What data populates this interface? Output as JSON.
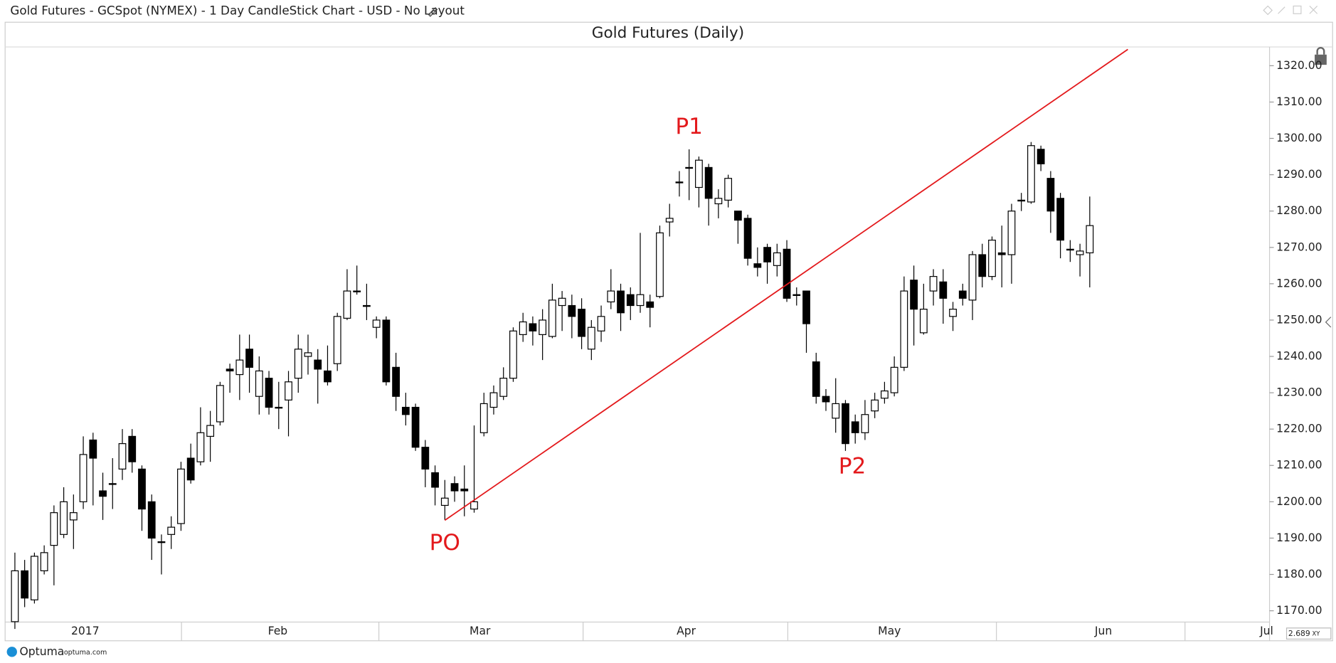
{
  "header": {
    "title": "Gold Futures - GCSpot (NYMEX) - 1 Day CandleStick Chart - USD - No Layout"
  },
  "footer": {
    "brand": "Optuma",
    "site": "optuma.com",
    "zoom": "2.689",
    "mode": "XY"
  },
  "chart_data": {
    "type": "candlestick",
    "title": "Gold Futures (Daily)",
    "up_color": "#ffffff",
    "down_color": "#000000",
    "open": [
      1167,
      1181,
      1173,
      1181,
      1188,
      1191,
      1195,
      1200,
      1217,
      1203,
      1205,
      1209,
      1218,
      1209,
      1200,
      1189,
      1191,
      1194,
      1212,
      1211,
      1218,
      1222,
      1236.5,
      1235,
      1242,
      1229,
      1234,
      1226,
      1228,
      1234,
      1240,
      1239,
      1236,
      1238,
      1250.5,
      1258,
      1254,
      1248,
      1250,
      1237,
      1226,
      1226,
      1215,
      1208,
      1199,
      1205,
      1203.5,
      1198,
      1219,
      1226,
      1229,
      1234,
      1246,
      1249,
      1246,
      1245.5,
      1254,
      1254,
      1253,
      1242,
      1247,
      1255,
      1258,
      1257,
      1254,
      1255,
      1256.5,
      1277,
      1288,
      1292,
      1286.5,
      1292,
      1282,
      1283,
      1280,
      1278,
      1265.5,
      1270,
      1265,
      1269.5,
      1257,
      1258,
      1238.5,
      1229,
      1223,
      1227,
      1222,
      1219,
      1225,
      1228.5,
      1230,
      1237,
      1261,
      1246.5,
      1258,
      1260.5,
      1251,
      1258,
      1255.5,
      1268,
      1262,
      1268.5,
      1268,
      1283,
      1282.5,
      1297,
      1289,
      1283.5,
      1269.5,
      1268,
      1268.5
    ],
    "high": [
      1186,
      1184,
      1186,
      1188,
      1199,
      1204,
      1202,
      1218,
      1219,
      1208,
      1212,
      1220,
      1220,
      1210,
      1202,
      1191,
      1196,
      1211,
      1216,
      1226,
      1225,
      1233,
      1238,
      1246,
      1246,
      1240,
      1236,
      1233,
      1236,
      1246,
      1246,
      1242,
      1243,
      1252,
      1264,
      1265,
      1260,
      1251,
      1251,
      1241,
      1230,
      1227,
      1217,
      1210,
      1206,
      1207,
      1210,
      1221,
      1230,
      1232,
      1237,
      1248,
      1252,
      1251,
      1253,
      1260,
      1258,
      1257,
      1256,
      1250,
      1254,
      1264,
      1260,
      1259,
      1274,
      1257,
      1276,
      1282,
      1291,
      1297,
      1295,
      1293,
      1286,
      1290,
      1280,
      1279,
      1270,
      1271,
      1271,
      1272,
      1259,
      1258,
      1241,
      1231,
      1234,
      1228,
      1224,
      1228,
      1230,
      1233,
      1240,
      1262,
      1265,
      1260,
      1264,
      1264,
      1255,
      1260,
      1269,
      1271,
      1273,
      1276,
      1282,
      1285,
      1299,
      1298,
      1291,
      1285,
      1272,
      1271,
      1284
    ],
    "low": [
      1165,
      1171,
      1172,
      1180,
      1177,
      1190,
      1187,
      1198,
      1199,
      1195,
      1198,
      1206,
      1208,
      1192,
      1184,
      1180,
      1187,
      1192,
      1205,
      1210,
      1211,
      1221,
      1230,
      1228,
      1230,
      1224,
      1224,
      1220,
      1218,
      1230,
      1235,
      1227,
      1232,
      1236,
      1250,
      1257,
      1250,
      1245,
      1232,
      1225,
      1221,
      1214,
      1204,
      1199,
      1195,
      1200,
      1196,
      1197,
      1218,
      1224,
      1228,
      1233,
      1244,
      1243,
      1239,
      1245,
      1247,
      1245,
      1242,
      1239,
      1244,
      1253,
      1247,
      1250,
      1252,
      1248,
      1256,
      1273,
      1284,
      1283,
      1281,
      1276,
      1278,
      1281,
      1271,
      1265,
      1262,
      1260,
      1262,
      1255,
      1254,
      1241,
      1227,
      1225,
      1219,
      1214,
      1216,
      1217,
      1223,
      1227,
      1229,
      1236,
      1243,
      1246,
      1254,
      1249,
      1247,
      1254,
      1250,
      1259,
      1261,
      1259,
      1260,
      1280,
      1282,
      1291,
      1274,
      1267,
      1266,
      1262,
      1259
    ],
    "close": [
      1181,
      1173.5,
      1185,
      1186,
      1197,
      1200,
      1197,
      1213,
      1212,
      1201.5,
      1205,
      1216,
      1211,
      1198,
      1190,
      1189,
      1193,
      1209,
      1206,
      1219,
      1221,
      1232,
      1236,
      1239,
      1237,
      1236,
      1226,
      1226,
      1233,
      1242,
      1241,
      1236.5,
      1233,
      1251,
      1258,
      1258,
      1254,
      1250,
      1233,
      1229,
      1224,
      1215,
      1209,
      1204,
      1201,
      1203,
      1203,
      1200,
      1227,
      1230,
      1234,
      1247,
      1249.5,
      1247,
      1250,
      1255.5,
      1256,
      1251,
      1245.5,
      1248,
      1251,
      1258,
      1252,
      1254,
      1257,
      1253.5,
      1274,
      1278,
      1288,
      1292,
      1294,
      1283.5,
      1283.5,
      1289,
      1277.5,
      1267,
      1264.5,
      1266,
      1268.5,
      1256,
      1257,
      1249,
      1229,
      1227.5,
      1227,
      1216,
      1219,
      1224,
      1228,
      1230.5,
      1237,
      1258,
      1253,
      1253,
      1262,
      1256,
      1253,
      1256,
      1268,
      1262,
      1272,
      1268,
      1280,
      1283,
      1298,
      1293,
      1280,
      1272,
      1269.5,
      1269,
      1276
    ],
    "xlim": [
      -1,
      128.4
    ],
    "xticks": [
      {
        "value": 7.2,
        "label": "2017"
      },
      {
        "value": 26.9,
        "label": "Feb"
      },
      {
        "value": 47.6,
        "label": "Mar"
      },
      {
        "value": 68.7,
        "label": "Apr"
      },
      {
        "value": 89.5,
        "label": "May"
      },
      {
        "value": 111.4,
        "label": "Jun"
      },
      {
        "value": 128.1,
        "label": "Jul"
      }
    ],
    "ylim": [
      1166.9,
      1324.7
    ],
    "yticks": [
      {
        "value": 1170,
        "label": "1170.00"
      },
      {
        "value": 1180,
        "label": "1180.00"
      },
      {
        "value": 1190,
        "label": "1190.00"
      },
      {
        "value": 1200,
        "label": "1200.00"
      },
      {
        "value": 1210,
        "label": "1210.00"
      },
      {
        "value": 1220,
        "label": "1220.00"
      },
      {
        "value": 1230,
        "label": "1230.00"
      },
      {
        "value": 1240,
        "label": "1240.00"
      },
      {
        "value": 1250,
        "label": "1250.00"
      },
      {
        "value": 1260,
        "label": "1260.00"
      },
      {
        "value": 1270,
        "label": "1270.00"
      },
      {
        "value": 1280,
        "label": "1280.00"
      },
      {
        "value": 1290,
        "label": "1290.00"
      },
      {
        "value": 1300,
        "label": "1300.00"
      },
      {
        "value": 1310,
        "label": "1310.00"
      },
      {
        "value": 1320,
        "label": "1320.00"
      }
    ],
    "trendline": {
      "x": [
        44,
        113.9
      ],
      "y": [
        1194.9,
        1324.5
      ],
      "color": "#e3191c"
    },
    "annotations": [
      {
        "text": "PO",
        "x": 44,
        "y": 1188.5
      },
      {
        "text": "P1",
        "x": 69,
        "y": 1303
      },
      {
        "text": "P2",
        "x": 85.7,
        "y": 1209.6
      }
    ],
    "annotation_color": "#e3191c"
  }
}
